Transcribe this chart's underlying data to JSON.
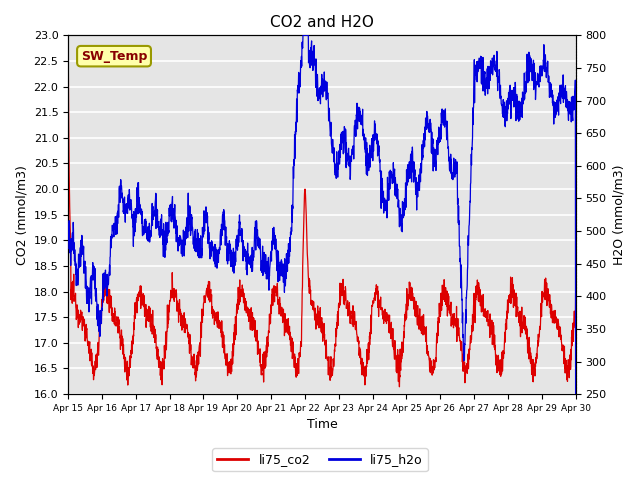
{
  "title": "CO2 and H2O",
  "xlabel": "Time",
  "ylabel_left": "CO2 (mmol/m3)",
  "ylabel_right": "H2O (mmol/m3)",
  "ylim_left": [
    16.0,
    23.0
  ],
  "ylim_right": [
    250,
    800
  ],
  "plot_bg_color": "#e5e5e5",
  "co2_color": "#dd0000",
  "h2o_color": "#0000dd",
  "annotation_text": "SW_Temp",
  "annotation_bg": "#ffffaa",
  "annotation_border": "#999900",
  "legend_co2": "li75_co2",
  "legend_h2o": "li75_h2o",
  "xtick_labels": [
    "Apr 15",
    "Apr 16",
    "Apr 17",
    "Apr 18",
    "Apr 19",
    "Apr 20",
    "Apr 21",
    "Apr 22",
    "Apr 23",
    "Apr 24",
    "Apr 25",
    "Apr 26",
    "Apr 27",
    "Apr 28",
    "Apr 29",
    "Apr 30"
  ],
  "yticks_left": [
    16.0,
    16.5,
    17.0,
    17.5,
    18.0,
    18.5,
    19.0,
    19.5,
    20.0,
    20.5,
    21.0,
    21.5,
    22.0,
    22.5,
    23.0
  ],
  "yticks_right": [
    250,
    300,
    350,
    400,
    450,
    500,
    550,
    600,
    650,
    700,
    750,
    800
  ]
}
